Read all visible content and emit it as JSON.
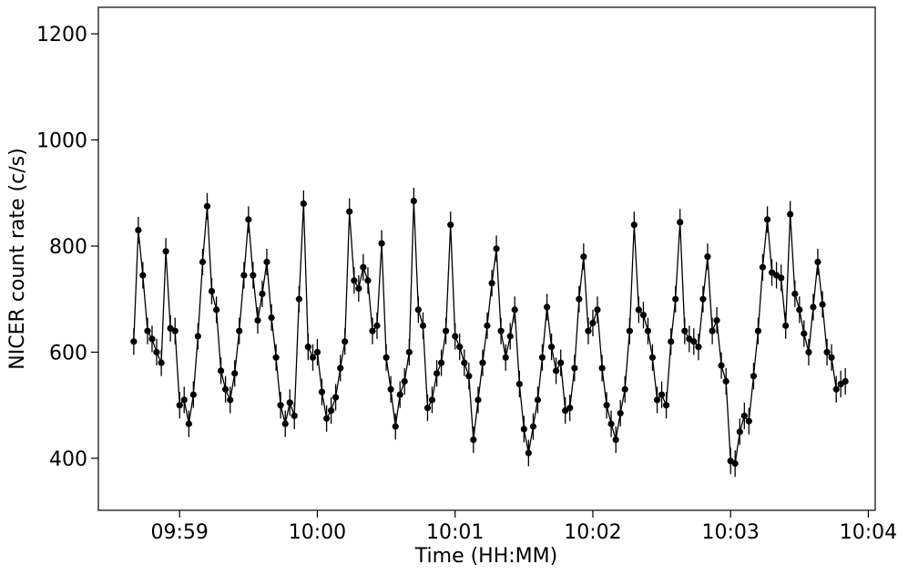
{
  "chart_data": {
    "type": "line",
    "xlabel": "Time (HH:MM)",
    "ylabel": "NICER count rate (c/s)",
    "color": "#000000",
    "yerr": 25,
    "markers": true,
    "grid": false,
    "xlim": [
      598.41,
      604.05
    ],
    "ylim": [
      302,
      1250
    ],
    "xticks": [
      {
        "value": 599,
        "label": "09:59"
      },
      {
        "value": 600,
        "label": "10:00"
      },
      {
        "value": 601,
        "label": "10:01"
      },
      {
        "value": 602,
        "label": "10:02"
      },
      {
        "value": 603,
        "label": "10:03"
      },
      {
        "value": 604,
        "label": "10:04"
      }
    ],
    "yticks": [
      400,
      600,
      800,
      1000,
      1200
    ],
    "x": [
      598.667,
      598.7,
      598.733,
      598.767,
      598.8,
      598.833,
      598.867,
      598.9,
      598.933,
      598.967,
      599,
      599.033,
      599.067,
      599.1,
      599.133,
      599.167,
      599.2,
      599.233,
      599.267,
      599.3,
      599.333,
      599.367,
      599.4,
      599.433,
      599.467,
      599.5,
      599.533,
      599.567,
      599.6,
      599.633,
      599.667,
      599.7,
      599.733,
      599.767,
      599.8,
      599.833,
      599.867,
      599.9,
      599.933,
      599.967,
      600,
      600.033,
      600.067,
      600.1,
      600.133,
      600.167,
      600.2,
      600.233,
      600.267,
      600.3,
      600.333,
      600.367,
      600.4,
      600.433,
      600.467,
      600.5,
      600.533,
      600.567,
      600.6,
      600.633,
      600.667,
      600.7,
      600.733,
      600.767,
      600.8,
      600.833,
      600.867,
      600.9,
      600.933,
      600.967,
      601,
      601.033,
      601.067,
      601.1,
      601.133,
      601.167,
      601.2,
      601.233,
      601.267,
      601.3,
      601.333,
      601.367,
      601.4,
      601.433,
      601.467,
      601.5,
      601.533,
      601.567,
      601.6,
      601.633,
      601.667,
      601.7,
      601.733,
      601.767,
      601.8,
      601.833,
      601.867,
      601.9,
      601.933,
      601.967,
      602,
      602.033,
      602.067,
      602.1,
      602.133,
      602.167,
      602.2,
      602.233,
      602.267,
      602.3,
      602.333,
      602.367,
      602.4,
      602.433,
      602.467,
      602.5,
      602.533,
      602.567,
      602.6,
      602.633,
      602.667,
      602.7,
      602.733,
      602.767,
      602.8,
      602.833,
      602.867,
      602.9,
      602.933,
      602.967,
      603,
      603.033,
      603.067,
      603.1,
      603.133,
      603.167,
      603.2,
      603.233,
      603.267,
      603.3,
      603.333,
      603.367,
      603.4,
      603.433,
      603.467,
      603.5,
      603.533,
      603.567,
      603.6,
      603.633,
      603.667,
      603.7,
      603.733,
      603.767,
      603.8,
      603.833
    ],
    "values": [
      620,
      830,
      745,
      640,
      625,
      600,
      580,
      790,
      645,
      640,
      500,
      510,
      465,
      520,
      630,
      770,
      875,
      715,
      680,
      565,
      530,
      510,
      560,
      640,
      745,
      850,
      745,
      660,
      710,
      770,
      665,
      590,
      500,
      465,
      505,
      480,
      700,
      880,
      610,
      590,
      600,
      525,
      475,
      490,
      515,
      570,
      620,
      865,
      735,
      720,
      760,
      735,
      640,
      650,
      805,
      590,
      530,
      460,
      520,
      545,
      600,
      885,
      680,
      650,
      495,
      510,
      560,
      580,
      640,
      840,
      630,
      610,
      580,
      555,
      435,
      510,
      580,
      650,
      730,
      795,
      640,
      590,
      630,
      680,
      540,
      455,
      410,
      460,
      510,
      590,
      685,
      610,
      565,
      580,
      490,
      495,
      570,
      700,
      780,
      640,
      655,
      680,
      570,
      500,
      465,
      435,
      485,
      530,
      640,
      840,
      680,
      670,
      640,
      590,
      510,
      520,
      500,
      620,
      700,
      845,
      640,
      625,
      620,
      610,
      700,
      780,
      640,
      660,
      575,
      545,
      395,
      390,
      450,
      480,
      470,
      555,
      640,
      760,
      850,
      750,
      745,
      740,
      650,
      860,
      710,
      680,
      635,
      600,
      685,
      770,
      690,
      600,
      590,
      530,
      540,
      545
    ]
  }
}
